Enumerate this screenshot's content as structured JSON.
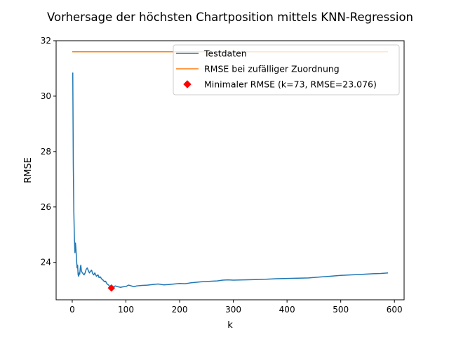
{
  "chart_data": {
    "type": "line",
    "title": "Vorhersage der höchsten Chartposition mittels KNN-Regression",
    "xlabel": "k",
    "ylabel": "RMSE",
    "xlim": [
      -30,
      618
    ],
    "ylim": [
      22.65,
      32.0
    ],
    "xticks": [
      0,
      100,
      200,
      300,
      400,
      500,
      600
    ],
    "yticks": [
      24,
      26,
      28,
      30,
      32
    ],
    "grid": false,
    "legend_position": "top-right",
    "series": [
      {
        "name": "Testdaten",
        "kind": "line",
        "color": "#1f77b4",
        "points": [
          [
            1,
            30.85
          ],
          [
            2,
            27.5
          ],
          [
            3,
            25.8
          ],
          [
            4,
            24.9
          ],
          [
            5,
            24.35
          ],
          [
            6,
            24.7
          ],
          [
            7,
            24.45
          ],
          [
            8,
            24.1
          ],
          [
            9,
            23.8
          ],
          [
            10,
            23.9
          ],
          [
            11,
            23.55
          ],
          [
            12,
            23.5
          ],
          [
            13,
            23.62
          ],
          [
            14,
            23.58
          ],
          [
            15,
            23.8
          ],
          [
            16,
            23.9
          ],
          [
            17,
            23.7
          ],
          [
            18,
            23.65
          ],
          [
            20,
            23.6
          ],
          [
            22,
            23.55
          ],
          [
            24,
            23.62
          ],
          [
            26,
            23.75
          ],
          [
            28,
            23.8
          ],
          [
            30,
            23.7
          ],
          [
            32,
            23.62
          ],
          [
            34,
            23.68
          ],
          [
            36,
            23.72
          ],
          [
            38,
            23.6
          ],
          [
            40,
            23.55
          ],
          [
            42,
            23.62
          ],
          [
            45,
            23.5
          ],
          [
            48,
            23.55
          ],
          [
            50,
            23.45
          ],
          [
            52,
            23.48
          ],
          [
            55,
            23.4
          ],
          [
            58,
            23.35
          ],
          [
            60,
            23.3
          ],
          [
            62,
            23.32
          ],
          [
            65,
            23.22
          ],
          [
            68,
            23.18
          ],
          [
            70,
            23.12
          ],
          [
            73,
            23.076
          ],
          [
            76,
            23.1
          ],
          [
            80,
            23.15
          ],
          [
            85,
            23.12
          ],
          [
            90,
            23.1
          ],
          [
            95,
            23.12
          ],
          [
            100,
            23.13
          ],
          [
            105,
            23.18
          ],
          [
            110,
            23.15
          ],
          [
            115,
            23.12
          ],
          [
            120,
            23.15
          ],
          [
            130,
            23.17
          ],
          [
            140,
            23.18
          ],
          [
            150,
            23.2
          ],
          [
            160,
            23.22
          ],
          [
            170,
            23.19
          ],
          [
            180,
            23.2
          ],
          [
            190,
            23.22
          ],
          [
            200,
            23.24
          ],
          [
            210,
            23.23
          ],
          [
            220,
            23.26
          ],
          [
            230,
            23.28
          ],
          [
            240,
            23.3
          ],
          [
            250,
            23.31
          ],
          [
            260,
            23.32
          ],
          [
            270,
            23.33
          ],
          [
            280,
            23.36
          ],
          [
            290,
            23.37
          ],
          [
            300,
            23.36
          ],
          [
            320,
            23.37
          ],
          [
            340,
            23.38
          ],
          [
            360,
            23.39
          ],
          [
            380,
            23.41
          ],
          [
            400,
            23.42
          ],
          [
            420,
            23.43
          ],
          [
            440,
            23.44
          ],
          [
            460,
            23.47
          ],
          [
            480,
            23.5
          ],
          [
            500,
            23.53
          ],
          [
            520,
            23.55
          ],
          [
            540,
            23.57
          ],
          [
            560,
            23.59
          ],
          [
            575,
            23.6
          ],
          [
            588,
            23.62
          ]
        ]
      },
      {
        "name": "RMSE bei zufälliger Zuordnung",
        "kind": "line",
        "color": "#ff7f0e",
        "points": [
          [
            0,
            31.6
          ],
          [
            588,
            31.6
          ]
        ]
      },
      {
        "name": "Minimaler RMSE (k=73, RMSE=23.076)",
        "kind": "marker",
        "marker": "diamond",
        "color": "#ff0000",
        "points": [
          [
            73,
            23.076
          ]
        ]
      }
    ]
  }
}
